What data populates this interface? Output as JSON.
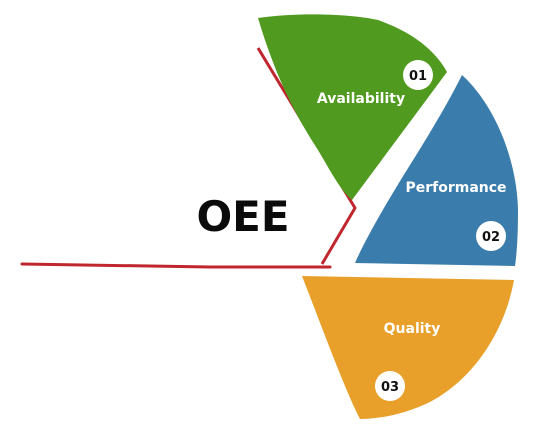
{
  "title": "OEE",
  "segments": [
    {
      "label": "Availability",
      "number": "01",
      "color": "#4f9a1f"
    },
    {
      "label": "Performance",
      "number": "02",
      "color": "#3a7cab"
    },
    {
      "label": "Quality",
      "number": "03",
      "color": "#e8a02a"
    }
  ],
  "colors": {
    "accent_line": "#c0262d",
    "badge_fill": "#ffffff",
    "badge_text": "#111111",
    "label_text": "#ffffff",
    "title_text": "#0b0b0b"
  }
}
